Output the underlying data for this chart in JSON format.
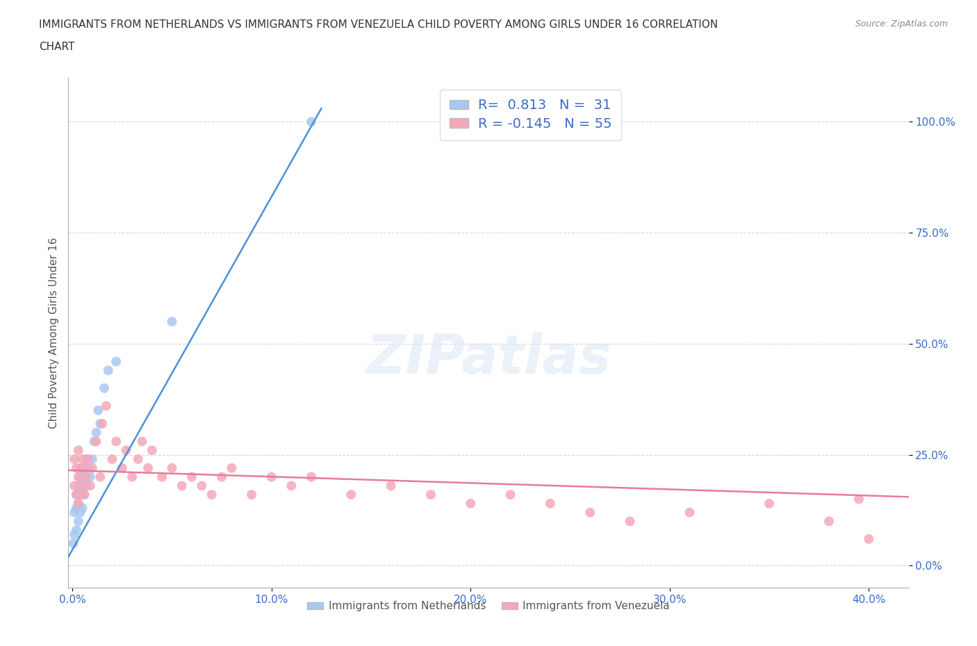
{
  "title_line1": "IMMIGRANTS FROM NETHERLANDS VS IMMIGRANTS FROM VENEZUELA CHILD POVERTY AMONG GIRLS UNDER 16 CORRELATION",
  "title_line2": "CHART",
  "source": "Source: ZipAtlas.com",
  "ylabel": "Child Poverty Among Girls Under 16",
  "xlim": [
    -0.002,
    0.42
  ],
  "ylim": [
    -0.05,
    1.1
  ],
  "xticks": [
    0.0,
    0.1,
    0.2,
    0.3,
    0.4
  ],
  "yticks": [
    0.0,
    0.25,
    0.5,
    0.75,
    1.0
  ],
  "watermark": "ZIPatlas",
  "netherlands_color": "#a8c8f0",
  "venezuela_color": "#f4a8b8",
  "netherlands_line_color": "#4a90d9",
  "venezuela_line_color": "#e87a9a",
  "netherlands_R": 0.813,
  "netherlands_N": 31,
  "venezuela_R": -0.145,
  "venezuela_N": 55,
  "nl_scatter_x": [
    0.0005,
    0.001,
    0.001,
    0.002,
    0.002,
    0.002,
    0.003,
    0.003,
    0.003,
    0.004,
    0.004,
    0.004,
    0.005,
    0.005,
    0.005,
    0.006,
    0.006,
    0.007,
    0.007,
    0.008,
    0.009,
    0.01,
    0.011,
    0.012,
    0.013,
    0.014,
    0.016,
    0.018,
    0.022,
    0.05,
    0.12
  ],
  "nl_scatter_y": [
    0.05,
    0.07,
    0.12,
    0.08,
    0.13,
    0.16,
    0.1,
    0.14,
    0.18,
    0.12,
    0.17,
    0.2,
    0.13,
    0.18,
    0.22,
    0.16,
    0.2,
    0.18,
    0.24,
    0.22,
    0.2,
    0.24,
    0.28,
    0.3,
    0.35,
    0.32,
    0.4,
    0.44,
    0.46,
    0.55,
    1.0
  ],
  "vz_scatter_x": [
    0.001,
    0.001,
    0.002,
    0.002,
    0.003,
    0.003,
    0.003,
    0.004,
    0.004,
    0.005,
    0.005,
    0.006,
    0.006,
    0.007,
    0.008,
    0.009,
    0.01,
    0.012,
    0.014,
    0.015,
    0.017,
    0.02,
    0.022,
    0.025,
    0.027,
    0.03,
    0.033,
    0.035,
    0.038,
    0.04,
    0.045,
    0.05,
    0.055,
    0.06,
    0.065,
    0.07,
    0.075,
    0.08,
    0.09,
    0.1,
    0.11,
    0.12,
    0.14,
    0.16,
    0.18,
    0.2,
    0.22,
    0.24,
    0.26,
    0.28,
    0.31,
    0.35,
    0.38,
    0.395,
    0.4
  ],
  "vz_scatter_y": [
    0.18,
    0.24,
    0.16,
    0.22,
    0.14,
    0.2,
    0.26,
    0.16,
    0.22,
    0.18,
    0.24,
    0.16,
    0.22,
    0.2,
    0.24,
    0.18,
    0.22,
    0.28,
    0.2,
    0.32,
    0.36,
    0.24,
    0.28,
    0.22,
    0.26,
    0.2,
    0.24,
    0.28,
    0.22,
    0.26,
    0.2,
    0.22,
    0.18,
    0.2,
    0.18,
    0.16,
    0.2,
    0.22,
    0.16,
    0.2,
    0.18,
    0.2,
    0.16,
    0.18,
    0.16,
    0.14,
    0.16,
    0.14,
    0.12,
    0.1,
    0.12,
    0.14,
    0.1,
    0.15,
    0.06
  ],
  "nl_line_x0": -0.002,
  "nl_line_x1": 0.125,
  "nl_line_y0": 0.02,
  "nl_line_y1": 1.03,
  "vz_line_x0": -0.002,
  "vz_line_x1": 0.42,
  "vz_line_y0": 0.215,
  "vz_line_y1": 0.155,
  "background_color": "#ffffff",
  "grid_color": "#cccccc"
}
